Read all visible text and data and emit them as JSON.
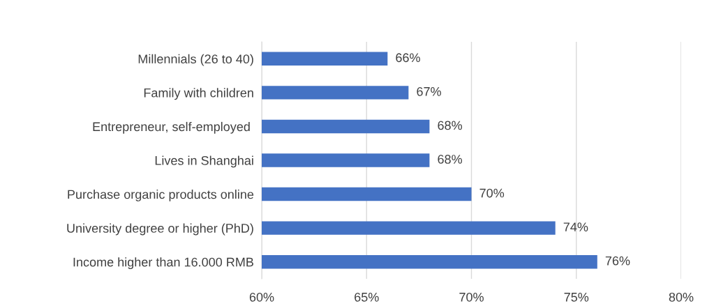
{
  "chart_data": {
    "type": "bar",
    "orientation": "horizontal",
    "categories": [
      "Millennials (26 to 40)",
      "Family with children",
      "Entrepreneur, self-employed ",
      "Lives in Shanghai",
      "Purchase organic products online",
      "University degree or higher (PhD)",
      "Income higher than 16.000 RMB"
    ],
    "values": [
      66,
      67,
      68,
      68,
      70,
      74,
      76
    ],
    "value_labels": [
      "66%",
      "67%",
      "68%",
      "68%",
      "70%",
      "74%",
      "76%"
    ],
    "color": "#4472c4",
    "xlim": [
      60,
      80
    ],
    "xticks": [
      {
        "value": 60,
        "label": "60%"
      },
      {
        "value": 65,
        "label": "65%"
      },
      {
        "value": 70,
        "label": "70%"
      },
      {
        "value": 75,
        "label": "75%"
      },
      {
        "value": 80,
        "label": "80%"
      }
    ],
    "grid": "x",
    "legend": false
  }
}
